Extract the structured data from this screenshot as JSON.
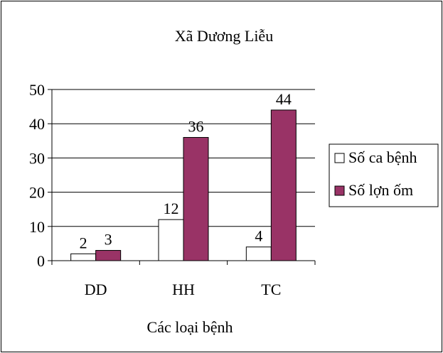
{
  "chart_data": {
    "type": "bar",
    "title": "Xã Dương Liễu",
    "xlabel": "Các loại bệnh",
    "ylabel": "",
    "categories": [
      "DD",
      "HH",
      "TC"
    ],
    "ylim": [
      0,
      50
    ],
    "yticks": [
      0,
      10,
      20,
      30,
      40,
      50
    ],
    "grid": true,
    "legend_position": "right",
    "series": [
      {
        "name": "Số ca bệnh",
        "values": [
          2,
          12,
          4
        ],
        "color": "#ffffff"
      },
      {
        "name": "Số lợn ốm",
        "values": [
          3,
          36,
          44
        ],
        "color": "#993366"
      }
    ]
  }
}
